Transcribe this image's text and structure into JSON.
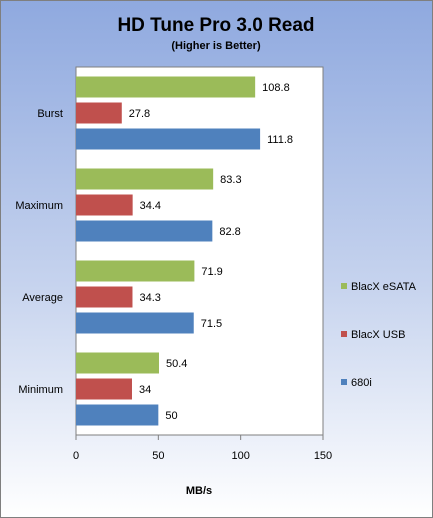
{
  "chart_data": {
    "type": "bar",
    "orientation": "horizontal",
    "title": "HD Tune Pro 3.0 Read",
    "subtitle": "(Higher is Better)",
    "xlabel": "MB/s",
    "ylabel": "",
    "xlim": [
      0,
      150
    ],
    "xticks": [
      "0",
      "50",
      "100",
      "150"
    ],
    "grid": false,
    "legend_position": "right",
    "categories": [
      "Burst",
      "Maximum",
      "Average",
      "Minimum"
    ],
    "series": [
      {
        "name": "BlacX eSATA",
        "color": "#9bbb59",
        "values": [
          108.8,
          83.3,
          71.9,
          50.4
        ],
        "labels": [
          "108.8",
          "83.3",
          "71.9",
          "50.4"
        ]
      },
      {
        "name": "BlacX USB",
        "color": "#c0504d",
        "values": [
          27.8,
          34.4,
          34.3,
          34
        ],
        "labels": [
          "27.8",
          "34.4",
          "34.3",
          "34"
        ]
      },
      {
        "name": "680i",
        "color": "#4f81bd",
        "values": [
          111.8,
          82.8,
          71.5,
          50
        ],
        "labels": [
          "111.8",
          "82.8",
          "71.5",
          "50"
        ]
      }
    ]
  }
}
